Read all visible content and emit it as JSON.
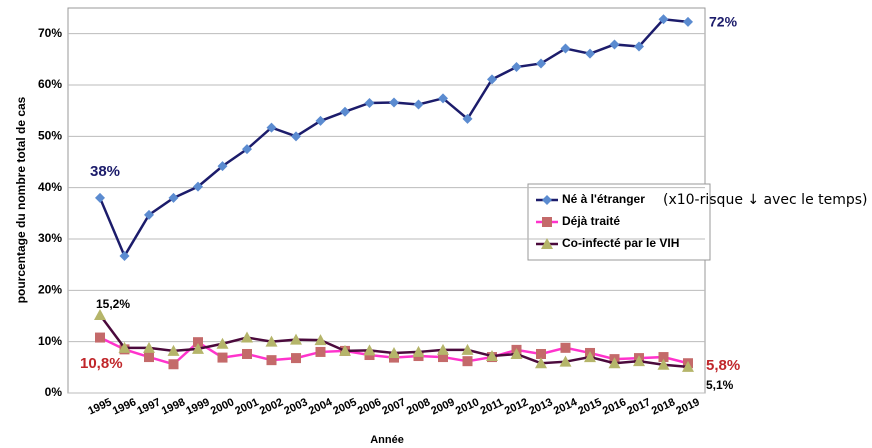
{
  "chart_data": {
    "type": "line",
    "x_label": "Année",
    "y_label": "pourcentage du nombre total de cas",
    "categories": [
      "1995",
      "1996",
      "1997",
      "1998",
      "1999",
      "2000",
      "2001",
      "2002",
      "2003",
      "2004",
      "2005",
      "2006",
      "2007",
      "2008",
      "2009",
      "2010",
      "2011",
      "2012",
      "2013",
      "2014",
      "2015",
      "2016",
      "2017",
      "2018",
      "2019"
    ],
    "series": [
      {
        "name": "Né à l'étranger",
        "color": "#1c1c6b",
        "marker": "diamond",
        "marker_color": "#5b8bd0",
        "values": [
          38,
          26.7,
          34.7,
          38,
          40.2,
          44.2,
          47.5,
          51.7,
          50,
          53,
          54.8,
          56.5,
          56.6,
          56.2,
          57.4,
          53.4,
          61.1,
          63.5,
          64.2,
          67.1,
          66.1,
          67.9,
          67.5,
          72.8,
          72.3
        ]
      },
      {
        "name": "Déjà traité",
        "color": "#ff33cc",
        "marker": "square",
        "marker_color": "#c46a6a",
        "values": [
          10.8,
          8.5,
          7,
          5.6,
          9.9,
          6.9,
          7.6,
          6.4,
          6.8,
          8,
          8.2,
          7.4,
          6.9,
          7.2,
          7,
          6.2,
          7,
          8.4,
          7.6,
          8.8,
          7.8,
          6.6,
          6.8,
          7,
          5.8
        ]
      },
      {
        "name": "Co-infecté par le VIH",
        "color": "#4b0a3c",
        "marker": "triangle",
        "marker_color": "#b5b56a",
        "values": [
          15.2,
          8.8,
          8.8,
          8.2,
          8.6,
          9.6,
          10.8,
          10,
          10.4,
          10.3,
          8.2,
          8.3,
          7.8,
          8,
          8.4,
          8.4,
          7.2,
          7.6,
          5.8,
          6.1,
          7,
          5.8,
          6.2,
          5.5,
          5.1
        ]
      }
    ],
    "legend_note": "(x10-risque ↓ avec le temps)",
    "annotations": [
      {
        "text": "38%",
        "color": "#1c1c6b"
      },
      {
        "text": "72%",
        "color": "#1c1c6b"
      },
      {
        "text": "15,2%",
        "color": "#000000"
      },
      {
        "text": "10,8%",
        "color": "#c0262a"
      },
      {
        "text": "5,8%",
        "color": "#c0262a"
      },
      {
        "text": "5,1%",
        "color": "#000000"
      }
    ],
    "ylim": [
      0,
      75
    ],
    "yticks": [
      {
        "value": 0,
        "label": "0%"
      },
      {
        "value": 10,
        "label": "10%"
      },
      {
        "value": 20,
        "label": "20%"
      },
      {
        "value": 30,
        "label": "30%"
      },
      {
        "value": 40,
        "label": "40%"
      },
      {
        "value": 50,
        "label": "50%"
      },
      {
        "value": 60,
        "label": "60%"
      },
      {
        "value": 70,
        "label": "70%"
      }
    ],
    "grid": true
  }
}
